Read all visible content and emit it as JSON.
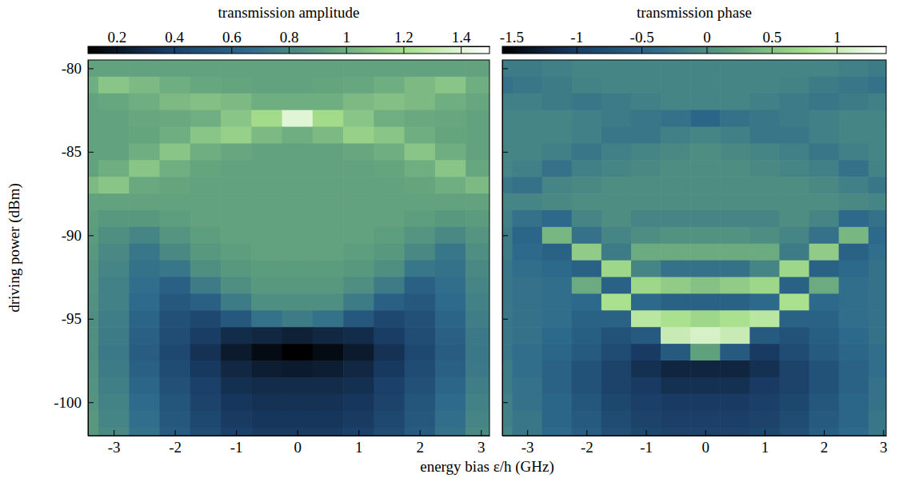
{
  "chart_data": [
    {
      "type": "heatmap",
      "title": "transmission amplitude",
      "xlabel": "energy bias ε/h (GHz)",
      "ylabel": "driving power (dBm)",
      "x": [
        -3.5,
        -3,
        -2.5,
        -2,
        -1.5,
        -1,
        -0.5,
        0,
        0.5,
        1,
        1.5,
        2,
        2.5,
        3
      ],
      "y": [
        -80,
        -81,
        -82,
        -83,
        -84,
        -85,
        -86,
        -87,
        -88,
        -89,
        -90,
        -91,
        -92,
        -93,
        -94,
        -95,
        -96,
        -97,
        -98,
        -99,
        -100,
        -101,
        -102
      ],
      "z": [
        [
          0.95,
          0.95,
          0.95,
          0.95,
          0.95,
          0.95,
          0.95,
          0.95,
          0.95,
          0.95,
          0.95,
          0.95,
          0.95,
          0.95
        ],
        [
          1.0,
          1.1,
          1.05,
          1.0,
          0.97,
          0.96,
          0.95,
          0.95,
          0.96,
          0.97,
          1.0,
          1.05,
          1.1,
          1.0
        ],
        [
          0.95,
          0.97,
          1.0,
          1.05,
          1.08,
          1.05,
          1.0,
          1.0,
          1.0,
          1.05,
          1.08,
          1.05,
          1.0,
          0.97
        ],
        [
          0.95,
          0.95,
          0.97,
          0.98,
          1.0,
          1.1,
          1.2,
          1.4,
          1.2,
          1.1,
          1.0,
          0.98,
          0.97,
          0.95
        ],
        [
          0.95,
          0.95,
          0.96,
          1.0,
          1.1,
          1.15,
          1.05,
          1.0,
          1.05,
          1.15,
          1.1,
          1.0,
          0.96,
          0.95
        ],
        [
          0.95,
          0.95,
          1.0,
          1.1,
          1.0,
          0.97,
          0.95,
          0.95,
          0.95,
          0.97,
          1.0,
          1.1,
          1.0,
          0.95
        ],
        [
          0.95,
          1.0,
          1.1,
          1.0,
          0.96,
          0.95,
          0.95,
          0.95,
          0.95,
          0.95,
          0.96,
          1.0,
          1.1,
          0.97
        ],
        [
          1.05,
          1.1,
          0.98,
          0.96,
          0.95,
          0.95,
          0.95,
          0.95,
          0.95,
          0.95,
          0.95,
          0.96,
          1.0,
          1.05
        ],
        [
          0.95,
          0.95,
          0.95,
          0.95,
          0.95,
          0.95,
          0.95,
          0.95,
          0.95,
          0.95,
          0.95,
          0.95,
          0.95,
          0.95
        ],
        [
          0.93,
          0.9,
          0.9,
          0.93,
          0.95,
          0.95,
          0.95,
          0.95,
          0.95,
          0.95,
          0.95,
          0.93,
          0.9,
          0.92
        ],
        [
          0.92,
          0.85,
          0.8,
          0.88,
          0.93,
          0.95,
          0.95,
          0.95,
          0.95,
          0.95,
          0.93,
          0.88,
          0.82,
          0.88
        ],
        [
          0.9,
          0.82,
          0.72,
          0.82,
          0.9,
          0.93,
          0.95,
          0.95,
          0.95,
          0.93,
          0.9,
          0.82,
          0.72,
          0.85
        ],
        [
          0.88,
          0.8,
          0.7,
          0.72,
          0.85,
          0.9,
          0.92,
          0.92,
          0.92,
          0.9,
          0.85,
          0.72,
          0.7,
          0.82
        ],
        [
          0.87,
          0.78,
          0.68,
          0.6,
          0.75,
          0.85,
          0.9,
          0.9,
          0.9,
          0.85,
          0.75,
          0.6,
          0.68,
          0.8
        ],
        [
          0.86,
          0.78,
          0.66,
          0.55,
          0.6,
          0.75,
          0.85,
          0.85,
          0.85,
          0.75,
          0.6,
          0.55,
          0.66,
          0.78
        ],
        [
          0.85,
          0.76,
          0.62,
          0.5,
          0.45,
          0.55,
          0.7,
          0.75,
          0.7,
          0.55,
          0.45,
          0.5,
          0.62,
          0.76
        ],
        [
          0.85,
          0.75,
          0.6,
          0.48,
          0.38,
          0.3,
          0.28,
          0.25,
          0.28,
          0.3,
          0.38,
          0.48,
          0.6,
          0.74
        ],
        [
          0.85,
          0.74,
          0.58,
          0.45,
          0.33,
          0.22,
          0.15,
          0.1,
          0.15,
          0.22,
          0.33,
          0.45,
          0.58,
          0.73
        ],
        [
          0.86,
          0.75,
          0.6,
          0.47,
          0.36,
          0.28,
          0.24,
          0.22,
          0.24,
          0.28,
          0.36,
          0.47,
          0.6,
          0.74
        ],
        [
          0.87,
          0.77,
          0.63,
          0.5,
          0.4,
          0.32,
          0.3,
          0.3,
          0.3,
          0.32,
          0.4,
          0.5,
          0.63,
          0.76
        ],
        [
          0.88,
          0.79,
          0.66,
          0.53,
          0.42,
          0.35,
          0.33,
          0.33,
          0.33,
          0.35,
          0.42,
          0.53,
          0.66,
          0.78
        ],
        [
          0.9,
          0.8,
          0.68,
          0.55,
          0.45,
          0.37,
          0.35,
          0.35,
          0.35,
          0.37,
          0.45,
          0.55,
          0.68,
          0.8
        ],
        [
          0.9,
          0.82,
          0.7,
          0.57,
          0.47,
          0.4,
          0.37,
          0.37,
          0.37,
          0.4,
          0.47,
          0.57,
          0.7,
          0.82
        ]
      ],
      "xlim": [
        -3.42,
        3.14
      ],
      "ylim": [
        -102,
        -79.5
      ],
      "xticks": [
        -3,
        -2,
        -1,
        0,
        1,
        2,
        3
      ],
      "yticks": [
        -100,
        -95,
        -90,
        -85,
        -80
      ],
      "colorbar": {
        "range": [
          0.1,
          1.5
        ],
        "ticks": [
          0.2,
          0.4,
          0.6,
          0.8,
          1,
          1.2,
          1.4
        ]
      },
      "colors": [
        "#000000",
        "#1a3d66",
        "#2d6a8c",
        "#5fa07d",
        "#a9e08c",
        "#ffffff"
      ]
    },
    {
      "type": "heatmap",
      "title": "transmission phase",
      "x": [
        -3.5,
        -3,
        -2.5,
        -2,
        -1.5,
        -1,
        -0.5,
        0,
        0.5,
        1,
        1.5,
        2,
        2.5,
        3
      ],
      "y": [
        -80,
        -81,
        -82,
        -83,
        -84,
        -85,
        -86,
        -87,
        -88,
        -89,
        -90,
        -91,
        -92,
        -93,
        -94,
        -95,
        -96,
        -97,
        -98,
        -99,
        -100,
        -101,
        -102
      ],
      "z": [
        [
          -0.2,
          -0.2,
          -0.15,
          -0.1,
          -0.1,
          -0.1,
          -0.1,
          -0.1,
          -0.1,
          -0.1,
          -0.1,
          -0.1,
          -0.15,
          -0.2
        ],
        [
          -0.3,
          -0.25,
          -0.2,
          -0.12,
          -0.1,
          -0.1,
          -0.1,
          -0.1,
          -0.1,
          -0.1,
          -0.12,
          -0.2,
          -0.25,
          -0.3
        ],
        [
          -0.15,
          -0.15,
          -0.2,
          -0.25,
          -0.2,
          -0.15,
          -0.1,
          -0.1,
          -0.1,
          -0.15,
          -0.2,
          -0.25,
          -0.2,
          -0.15
        ],
        [
          -0.1,
          -0.1,
          -0.1,
          -0.15,
          -0.2,
          -0.25,
          -0.3,
          -0.45,
          -0.3,
          -0.25,
          -0.2,
          -0.15,
          -0.1,
          -0.1
        ],
        [
          -0.1,
          -0.1,
          -0.1,
          -0.15,
          -0.25,
          -0.25,
          -0.15,
          -0.1,
          -0.15,
          -0.25,
          -0.25,
          -0.15,
          -0.1,
          -0.1
        ],
        [
          -0.1,
          -0.1,
          -0.15,
          -0.25,
          -0.15,
          -0.1,
          -0.05,
          0,
          -0.05,
          -0.1,
          -0.15,
          -0.25,
          -0.15,
          -0.1
        ],
        [
          -0.1,
          -0.15,
          -0.3,
          -0.15,
          -0.1,
          -0.05,
          0,
          0,
          0,
          -0.05,
          -0.1,
          -0.15,
          -0.3,
          -0.12
        ],
        [
          -0.25,
          -0.3,
          -0.1,
          -0.05,
          0,
          0,
          0,
          0,
          0,
          0,
          0,
          -0.05,
          -0.15,
          -0.25
        ],
        [
          -0.1,
          -0.1,
          -0.05,
          0,
          0,
          0,
          0,
          0,
          0,
          0,
          0,
          0,
          -0.05,
          -0.1
        ],
        [
          -0.15,
          -0.3,
          -0.4,
          -0.1,
          0,
          -0.1,
          -0.1,
          -0.1,
          -0.1,
          -0.1,
          0,
          -0.1,
          -0.4,
          -0.3
        ],
        [
          -0.2,
          -0.45,
          0.4,
          -0.3,
          -0.1,
          0,
          0.05,
          0.05,
          0.05,
          0,
          -0.1,
          -0.3,
          0.4,
          -0.4
        ],
        [
          -0.2,
          -0.4,
          -0.5,
          0.6,
          -0.2,
          0.3,
          0.3,
          0.3,
          0.3,
          0.3,
          -0.2,
          0.6,
          -0.5,
          -0.35
        ],
        [
          -0.25,
          -0.35,
          -0.4,
          -0.5,
          0.7,
          -0.1,
          -0.3,
          -0.3,
          -0.3,
          -0.1,
          0.7,
          -0.5,
          -0.4,
          -0.3
        ],
        [
          -0.25,
          -0.3,
          -0.35,
          0.3,
          -0.5,
          0.7,
          0.6,
          0.5,
          0.6,
          0.7,
          -0.5,
          0.3,
          -0.35,
          -0.3
        ],
        [
          -0.25,
          -0.3,
          -0.35,
          -0.4,
          0.8,
          -0.4,
          -0.5,
          -0.5,
          -0.5,
          -0.4,
          0.8,
          -0.4,
          -0.35,
          -0.3
        ],
        [
          -0.25,
          -0.3,
          -0.35,
          -0.5,
          -0.5,
          0.9,
          0.8,
          0.7,
          0.8,
          0.9,
          -0.5,
          -0.5,
          -0.35,
          -0.3
        ],
        [
          -0.25,
          -0.3,
          -0.4,
          -0.55,
          -0.7,
          -0.6,
          1.0,
          1.1,
          1.0,
          -0.6,
          -0.7,
          -0.55,
          -0.4,
          -0.3
        ],
        [
          -0.25,
          -0.35,
          -0.45,
          -0.6,
          -0.8,
          -1.0,
          -0.6,
          0.2,
          -0.6,
          -1.0,
          -0.8,
          -0.6,
          -0.45,
          -0.35
        ],
        [
          -0.2,
          -0.35,
          -0.5,
          -0.7,
          -0.9,
          -1.1,
          -1.2,
          -1.2,
          -1.2,
          -1.1,
          -0.9,
          -0.7,
          -0.5,
          -0.35
        ],
        [
          -0.2,
          -0.3,
          -0.5,
          -0.7,
          -0.9,
          -1.0,
          -1.1,
          -1.1,
          -1.1,
          -1.0,
          -0.9,
          -0.7,
          -0.5,
          -0.3
        ],
        [
          -0.15,
          -0.3,
          -0.45,
          -0.65,
          -0.85,
          -0.95,
          -1.0,
          -1.0,
          -1.0,
          -0.95,
          -0.85,
          -0.65,
          -0.45,
          -0.3
        ],
        [
          -0.15,
          -0.25,
          -0.45,
          -0.6,
          -0.8,
          -0.9,
          -0.95,
          -0.95,
          -0.95,
          -0.9,
          -0.8,
          -0.6,
          -0.45,
          -0.25
        ],
        [
          -0.1,
          -0.25,
          -0.4,
          -0.55,
          -0.75,
          -0.85,
          -0.9,
          -0.9,
          -0.9,
          -0.85,
          -0.75,
          -0.55,
          -0.4,
          -0.25
        ]
      ],
      "xlim": [
        -3.42,
        3.05
      ],
      "ylim": [
        -102,
        -79.5
      ],
      "xticks": [
        -3,
        -2,
        -1,
        0,
        1,
        2,
        3
      ],
      "yticks": [
        -100,
        -95,
        -90,
        -85,
        -80
      ],
      "tick_labels": "x",
      "colorbar": {
        "range": [
          -1.57,
          1.38
        ],
        "ticks": [
          -1.5,
          -1,
          -0.5,
          0,
          0.5,
          1
        ]
      },
      "colors": [
        "#000000",
        "#1a3d66",
        "#2d6a8c",
        "#5fa07d",
        "#a9e08c",
        "#ffffff"
      ]
    }
  ]
}
